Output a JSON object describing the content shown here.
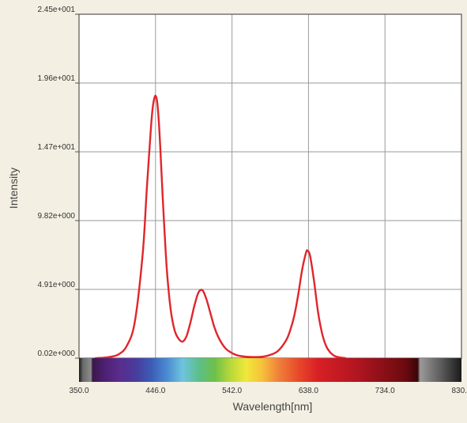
{
  "chart_data": {
    "type": "line",
    "title": "",
    "xlabel": "Wavelength[nm]",
    "ylabel": "Intensity",
    "xlim": [
      350.0,
      830.0
    ],
    "ylim": [
      0.02,
      24.5
    ],
    "grid": true,
    "legend": "none",
    "x_ticks": [
      "350.0",
      "446.0",
      "542.0",
      "638.0",
      "734.0",
      "830.0"
    ],
    "y_ticks": [
      "0.02e+000",
      "4.91e+000",
      "9.82e+000",
      "1.47e+001",
      "1.96e+001",
      "2.45e+001"
    ],
    "line_color": "#e0262b",
    "series": [
      {
        "x": [
          370,
          380,
          390,
          400,
          410,
          420,
          430,
          435,
          440,
          442,
          444,
          446,
          448,
          450,
          452,
          455,
          460,
          465,
          470,
          475,
          480,
          485,
          490,
          495,
          500,
          505,
          510,
          515,
          520,
          525,
          530,
          535,
          540,
          545,
          550,
          560,
          570,
          580,
          590,
          600,
          610,
          615,
          620,
          625,
          630,
          635,
          637,
          640,
          645,
          650,
          655,
          660,
          665,
          670,
          675,
          680,
          685
        ],
        "y": [
          0.02,
          0.05,
          0.12,
          0.3,
          0.9,
          2.6,
          7.5,
          12.0,
          16.2,
          17.6,
          18.4,
          18.7,
          18.3,
          17.0,
          15.0,
          11.5,
          6.5,
          3.5,
          2.0,
          1.4,
          1.2,
          1.6,
          2.6,
          3.8,
          4.7,
          4.85,
          4.2,
          3.2,
          2.2,
          1.5,
          1.0,
          0.65,
          0.45,
          0.3,
          0.2,
          0.12,
          0.1,
          0.12,
          0.25,
          0.55,
          1.3,
          2.0,
          3.0,
          4.5,
          6.3,
          7.55,
          7.65,
          7.3,
          5.5,
          3.3,
          1.8,
          0.9,
          0.45,
          0.2,
          0.1,
          0.05,
          0.02
        ]
      }
    ],
    "spectrum_bar": [
      {
        "nm": 350,
        "color": "#1a1a1a"
      },
      {
        "nm": 355,
        "color": "#6a6a6a"
      },
      {
        "nm": 365,
        "color": "#8c8c8c"
      },
      {
        "nm": 367,
        "color": "#3a1a4a"
      },
      {
        "nm": 380,
        "color": "#4b1f6e"
      },
      {
        "nm": 400,
        "color": "#5a2c8c"
      },
      {
        "nm": 420,
        "color": "#4a3a9a"
      },
      {
        "nm": 440,
        "color": "#3c5bb4"
      },
      {
        "nm": 460,
        "color": "#4a8ad2"
      },
      {
        "nm": 480,
        "color": "#6ec4de"
      },
      {
        "nm": 500,
        "color": "#5cbf8c"
      },
      {
        "nm": 520,
        "color": "#6cc04a"
      },
      {
        "nm": 540,
        "color": "#b8d83a"
      },
      {
        "nm": 560,
        "color": "#f0e83a"
      },
      {
        "nm": 580,
        "color": "#f6c03a"
      },
      {
        "nm": 600,
        "color": "#f0823a"
      },
      {
        "nm": 625,
        "color": "#e84a2a"
      },
      {
        "nm": 650,
        "color": "#d81f26"
      },
      {
        "nm": 700,
        "color": "#b01520"
      },
      {
        "nm": 760,
        "color": "#6a0a10"
      },
      {
        "nm": 775,
        "color": "#3a0608"
      },
      {
        "nm": 778,
        "color": "#9a9a9a"
      },
      {
        "nm": 805,
        "color": "#5a5a5a"
      },
      {
        "nm": 830,
        "color": "#1a1a1a"
      }
    ]
  }
}
